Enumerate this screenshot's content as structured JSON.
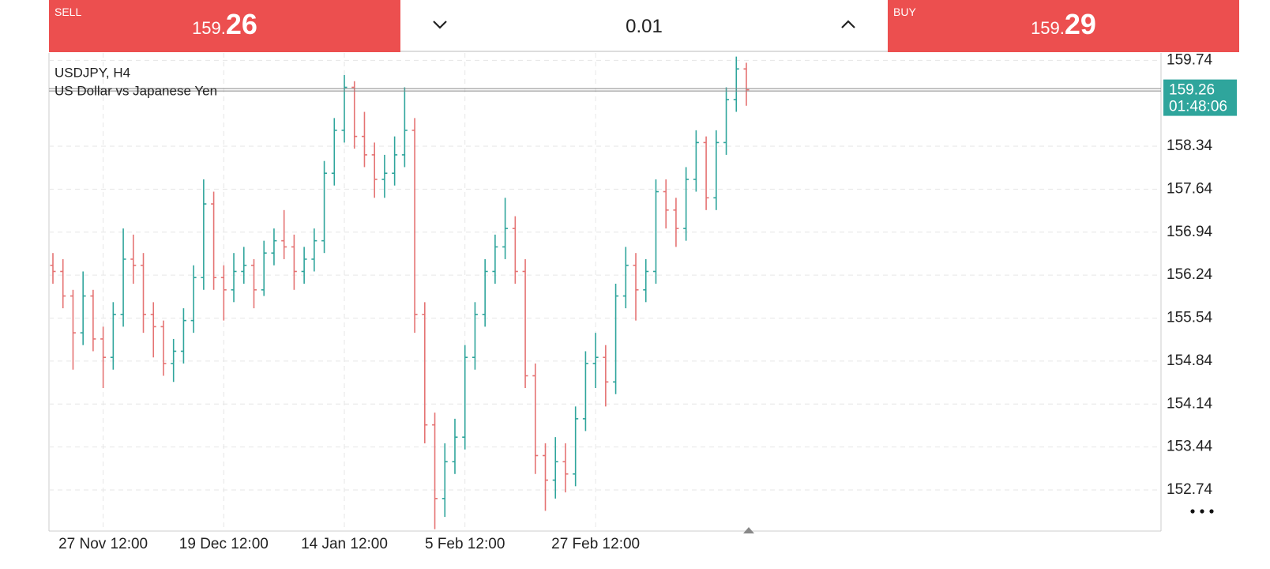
{
  "trade_panel": {
    "sell": {
      "label": "SELL",
      "price_prefix": "159.",
      "price_pips": "26"
    },
    "lot": "0.01",
    "buy": {
      "label": "BUY",
      "price_prefix": "159.",
      "price_pips": "29"
    }
  },
  "chart_data": {
    "type": "ohlc",
    "title": "USDJPY, H4",
    "subtitle": "US Dollar vs Japanese Yen",
    "up_color": "#2fa59c",
    "down_color": "#e57373",
    "grid": true,
    "current_price": 159.26,
    "countdown": "01:48:06",
    "ylim": [
      152.07,
      159.86
    ],
    "yticks": [
      159.74,
      158.34,
      157.64,
      156.94,
      156.24,
      155.54,
      154.84,
      154.14,
      153.44,
      152.74
    ],
    "categories": [
      null,
      null,
      null,
      null,
      null,
      "27 Nov 12:00",
      null,
      null,
      null,
      null,
      null,
      null,
      null,
      null,
      null,
      null,
      null,
      "19 Dec 12:00",
      null,
      null,
      null,
      null,
      null,
      null,
      null,
      null,
      null,
      null,
      null,
      "14 Jan 12:00",
      null,
      null,
      null,
      null,
      null,
      null,
      null,
      null,
      null,
      null,
      null,
      "5 Feb 12:00",
      null,
      null,
      null,
      null,
      null,
      null,
      null,
      null,
      null,
      null,
      null,
      null,
      "27 Feb 12:00",
      null,
      null,
      null,
      null,
      null,
      null,
      null,
      null,
      null,
      null,
      null,
      null,
      null,
      null,
      null
    ],
    "open": [
      156.4,
      156.3,
      155.9,
      155.3,
      155.9,
      155.2,
      154.9,
      155.6,
      156.5,
      156.4,
      155.6,
      155.4,
      154.8,
      155.0,
      155.5,
      156.2,
      157.4,
      156.2,
      156.0,
      156.3,
      156.4,
      156.0,
      156.6,
      156.8,
      156.7,
      156.3,
      156.5,
      156.8,
      157.9,
      158.6,
      159.3,
      158.5,
      158.2,
      157.8,
      157.9,
      158.2,
      158.6,
      155.6,
      153.8,
      152.6,
      153.2,
      153.6,
      154.9,
      155.6,
      156.3,
      156.7,
      157.0,
      156.3,
      154.6,
      153.3,
      152.9,
      153.2,
      153.0,
      153.9,
      154.8,
      154.9,
      154.5,
      155.9,
      156.4,
      156.0,
      156.3,
      157.6,
      157.3,
      157.0,
      157.8,
      158.4,
      157.5,
      158.4,
      159.1,
      159.6
    ],
    "high": [
      156.6,
      156.5,
      156.0,
      156.3,
      156.0,
      155.4,
      155.8,
      157.0,
      156.9,
      156.6,
      155.8,
      155.5,
      155.2,
      155.7,
      156.4,
      157.8,
      157.6,
      156.4,
      156.6,
      156.7,
      156.5,
      156.8,
      157.0,
      157.3,
      156.9,
      156.7,
      157.0,
      158.1,
      158.8,
      159.5,
      159.4,
      158.9,
      158.4,
      158.2,
      158.5,
      159.3,
      158.8,
      155.8,
      154.0,
      153.5,
      153.9,
      155.1,
      155.8,
      156.5,
      156.9,
      157.5,
      157.2,
      156.5,
      154.8,
      153.5,
      153.6,
      153.5,
      154.1,
      155.0,
      155.3,
      155.1,
      156.1,
      156.7,
      156.6,
      156.5,
      157.8,
      157.8,
      157.5,
      158.0,
      158.6,
      158.5,
      158.6,
      159.3,
      159.8,
      159.7
    ],
    "low": [
      156.1,
      155.7,
      154.7,
      155.1,
      155.0,
      154.4,
      154.7,
      155.4,
      156.1,
      155.3,
      154.9,
      154.6,
      154.5,
      154.8,
      155.3,
      156.0,
      156.0,
      155.5,
      155.8,
      156.1,
      155.7,
      155.9,
      156.4,
      156.5,
      156.0,
      156.1,
      156.3,
      156.6,
      157.7,
      158.4,
      158.3,
      158.0,
      157.5,
      157.5,
      157.7,
      158.0,
      155.3,
      153.5,
      152.1,
      152.3,
      153.0,
      153.4,
      154.7,
      155.4,
      156.1,
      156.5,
      156.1,
      154.4,
      153.0,
      152.4,
      152.6,
      152.7,
      152.8,
      153.7,
      154.4,
      154.1,
      154.3,
      155.7,
      155.5,
      155.8,
      156.1,
      157.0,
      156.7,
      156.8,
      157.6,
      157.3,
      157.3,
      158.2,
      158.9,
      159.0
    ],
    "close": [
      156.3,
      155.9,
      155.3,
      155.9,
      155.2,
      154.9,
      155.6,
      156.5,
      156.4,
      155.6,
      155.4,
      154.8,
      155.0,
      155.5,
      156.2,
      157.4,
      156.2,
      156.0,
      156.3,
      156.4,
      156.0,
      156.6,
      156.8,
      156.7,
      156.3,
      156.5,
      156.8,
      157.9,
      158.6,
      159.3,
      158.5,
      158.2,
      157.8,
      157.9,
      158.2,
      158.6,
      155.6,
      153.8,
      152.6,
      153.2,
      153.6,
      154.9,
      155.6,
      156.3,
      156.7,
      157.0,
      156.3,
      154.6,
      153.3,
      152.9,
      153.2,
      153.0,
      153.9,
      154.8,
      154.9,
      154.5,
      155.9,
      156.4,
      156.0,
      156.3,
      157.6,
      157.3,
      157.0,
      157.8,
      158.4,
      157.5,
      158.4,
      159.1,
      159.6,
      159.26
    ]
  }
}
